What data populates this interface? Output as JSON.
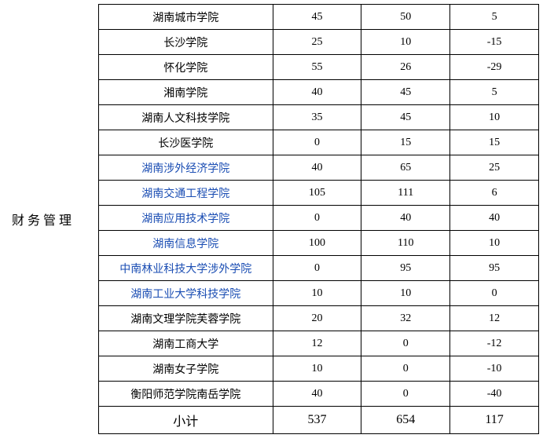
{
  "row_label": "财务管理",
  "table": {
    "rows": [
      {
        "school": "湖南城市学院",
        "v1": "45",
        "v2": "50",
        "v3": "5",
        "link": false
      },
      {
        "school": "长沙学院",
        "v1": "25",
        "v2": "10",
        "v3": "-15",
        "link": false
      },
      {
        "school": "怀化学院",
        "v1": "55",
        "v2": "26",
        "v3": "-29",
        "link": false
      },
      {
        "school": "湘南学院",
        "v1": "40",
        "v2": "45",
        "v3": "5",
        "link": false
      },
      {
        "school": "湖南人文科技学院",
        "v1": "35",
        "v2": "45",
        "v3": "10",
        "link": false
      },
      {
        "school": "长沙医学院",
        "v1": "0",
        "v2": "15",
        "v3": "15",
        "link": false
      },
      {
        "school": "湖南涉外经济学院",
        "v1": "40",
        "v2": "65",
        "v3": "25",
        "link": true
      },
      {
        "school": "湖南交通工程学院",
        "v1": "105",
        "v2": "111",
        "v3": "6",
        "link": true
      },
      {
        "school": "湖南应用技术学院",
        "v1": "0",
        "v2": "40",
        "v3": "40",
        "link": true
      },
      {
        "school": "湖南信息学院",
        "v1": "100",
        "v2": "110",
        "v3": "10",
        "link": true
      },
      {
        "school": "中南林业科技大学涉外学院",
        "v1": "0",
        "v2": "95",
        "v3": "95",
        "link": true
      },
      {
        "school": "湖南工业大学科技学院",
        "v1": "10",
        "v2": "10",
        "v3": "0",
        "link": true
      },
      {
        "school": "湖南文理学院芙蓉学院",
        "v1": "20",
        "v2": "32",
        "v3": "12",
        "link": false
      },
      {
        "school": "湖南工商大学",
        "v1": "12",
        "v2": "0",
        "v3": "-12",
        "link": false
      },
      {
        "school": "湖南女子学院",
        "v1": "10",
        "v2": "0",
        "v3": "-10",
        "link": false
      },
      {
        "school": "衡阳师范学院南岳学院",
        "v1": "40",
        "v2": "0",
        "v3": "-40",
        "link": false
      }
    ],
    "total": {
      "label": "小计",
      "v1": "537",
      "v2": "654",
      "v3": "117"
    }
  },
  "colors": {
    "link_color": "#1a4db3",
    "text_color": "#000000",
    "border_color": "#000000",
    "background": "#ffffff"
  }
}
